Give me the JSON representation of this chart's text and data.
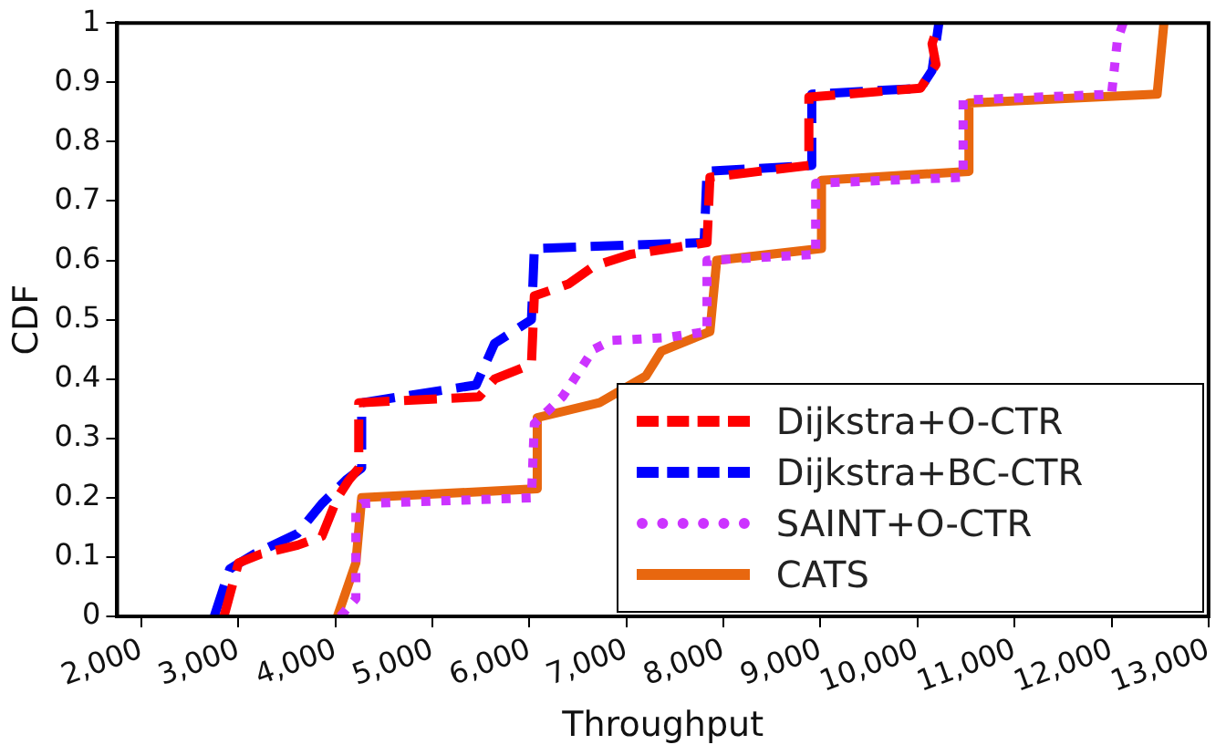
{
  "chart_data": {
    "type": "line",
    "xlabel": "Throughput",
    "ylabel": "CDF",
    "xlim": [
      1750,
      13000
    ],
    "ylim": [
      0,
      1
    ],
    "xticks": [
      {
        "value": 2000,
        "label": "2,000"
      },
      {
        "value": 3000,
        "label": "3,000"
      },
      {
        "value": 4000,
        "label": "4,000"
      },
      {
        "value": 5000,
        "label": "5,000"
      },
      {
        "value": 6000,
        "label": "6,000"
      },
      {
        "value": 7000,
        "label": "7,000"
      },
      {
        "value": 8000,
        "label": "8,000"
      },
      {
        "value": 9000,
        "label": "9,000"
      },
      {
        "value": 10000,
        "label": "10,000"
      },
      {
        "value": 11000,
        "label": "11,000"
      },
      {
        "value": 12000,
        "label": "12,000"
      },
      {
        "value": 13000,
        "label": "13,000"
      }
    ],
    "yticks": [
      0,
      0.1,
      0.2,
      0.3,
      0.4,
      0.5,
      0.6,
      0.7,
      0.8,
      0.9,
      1
    ],
    "grid": false,
    "legend": "bottom right",
    "series": [
      {
        "name": "Dijkstra+O-CTR",
        "color": "#ff0000",
        "line_style": "dashed",
        "x": [
          2850,
          3000,
          3230,
          3610,
          3860,
          4020,
          4140,
          4240,
          4240,
          5480,
          5640,
          6020,
          6050,
          6400,
          6660,
          7040,
          7830,
          7860,
          8880,
          8880,
          10030,
          10190,
          10150,
          10220
        ],
        "values": [
          0,
          0.09,
          0.105,
          0.12,
          0.135,
          0.2,
          0.23,
          0.25,
          0.36,
          0.37,
          0.4,
          0.425,
          0.54,
          0.56,
          0.59,
          0.61,
          0.63,
          0.74,
          0.76,
          0.875,
          0.89,
          0.93,
          0.965,
          1
        ]
      },
      {
        "name": "Dijkstra+BC-CTR",
        "color": "#0000ff",
        "line_style": "dashed",
        "x": [
          2750,
          2910,
          3160,
          3610,
          3860,
          4110,
          4270,
          4270,
          5450,
          5640,
          6020,
          6050,
          7800,
          7830,
          8910,
          8910,
          10030,
          10150,
          10220
        ],
        "values": [
          0,
          0.08,
          0.105,
          0.14,
          0.19,
          0.23,
          0.25,
          0.36,
          0.39,
          0.46,
          0.5,
          0.62,
          0.63,
          0.75,
          0.76,
          0.88,
          0.89,
          0.92,
          1
        ]
      },
      {
        "name": "SAINT+O-CTR",
        "color": "#cc33ff",
        "line_style": "dotted",
        "x": [
          4050,
          4210,
          4210,
          4270,
          6020,
          6050,
          6340,
          6660,
          6850,
          7420,
          7830,
          7830,
          8950,
          8950,
          10470,
          10470,
          12000,
          12060,
          12120
        ],
        "values": [
          0,
          0.03,
          0.18,
          0.19,
          0.2,
          0.325,
          0.37,
          0.45,
          0.465,
          0.47,
          0.48,
          0.6,
          0.61,
          0.73,
          0.74,
          0.87,
          0.88,
          0.97,
          1
        ]
      },
      {
        "name": "CATS",
        "color": "#e8670f",
        "line_style": "solid",
        "x": [
          4020,
          4210,
          4270,
          6080,
          6080,
          6720,
          7200,
          7360,
          7860,
          7930,
          9010,
          9010,
          10530,
          10530,
          12470,
          12540
        ],
        "values": [
          0,
          0.09,
          0.2,
          0.215,
          0.335,
          0.36,
          0.405,
          0.447,
          0.48,
          0.6,
          0.62,
          0.735,
          0.75,
          0.865,
          0.88,
          1
        ]
      }
    ]
  }
}
